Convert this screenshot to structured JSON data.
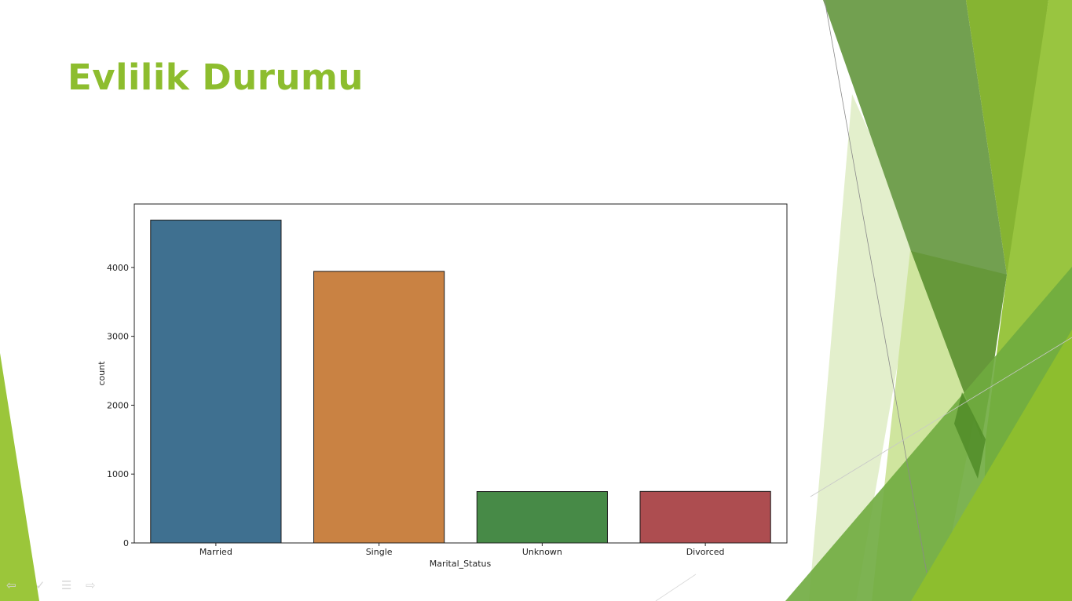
{
  "slide": {
    "title": "Evlilik Durumu"
  },
  "nav_icons": [
    "back-arrow-icon",
    "pen-icon",
    "menu-icon",
    "forward-arrow-icon"
  ],
  "chart_data": {
    "type": "bar",
    "categories": [
      "Married",
      "Single",
      "Unknown",
      "Divorced"
    ],
    "values": [
      4687,
      3943,
      746,
      748
    ],
    "xlabel": "Marital_Status",
    "ylabel": "count",
    "ylim": [
      0,
      4921
    ],
    "yticks": [
      0,
      1000,
      2000,
      3000,
      4000
    ],
    "colors": [
      "#3f7090",
      "#c98243",
      "#478a47",
      "#ad4d50"
    ],
    "grid": false,
    "legend": "none"
  },
  "colors": {
    "title": "#8dbd2e",
    "accent_green": "#8dbd2e",
    "dark_green": "#4e8a26"
  }
}
